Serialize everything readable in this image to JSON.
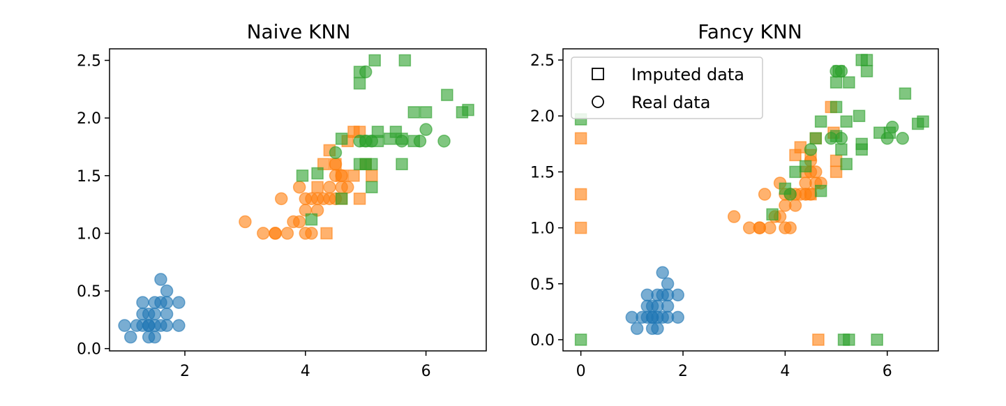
{
  "chart_data": [
    {
      "type": "scatter",
      "title": "Naive KNN",
      "xlabel": "",
      "ylabel": "",
      "xlim": [
        0.75,
        7.0
      ],
      "ylim": [
        -0.02,
        2.6
      ],
      "xticks": [
        2,
        4,
        6
      ],
      "yticks": [
        0.0,
        0.5,
        1.0,
        1.5,
        2.0,
        2.5
      ],
      "xtick_labels": [
        "2",
        "4",
        "6"
      ],
      "ytick_labels": [
        "0.0",
        "0.5",
        "1.0",
        "1.5",
        "2.0",
        "2.5"
      ],
      "grid": false,
      "legend": null,
      "series": [
        {
          "color": "#1f77b4",
          "marker": "circle",
          "points": [
            [
              1.0,
              0.2
            ],
            [
              1.1,
              0.1
            ],
            [
              1.2,
              0.2
            ],
            [
              1.3,
              0.2
            ],
            [
              1.3,
              0.3
            ],
            [
              1.3,
              0.4
            ],
            [
              1.4,
              0.2
            ],
            [
              1.4,
              0.1
            ],
            [
              1.4,
              0.3
            ],
            [
              1.5,
              0.2
            ],
            [
              1.5,
              0.1
            ],
            [
              1.5,
              0.4
            ],
            [
              1.6,
              0.2
            ],
            [
              1.6,
              0.4
            ],
            [
              1.6,
              0.6
            ],
            [
              1.7,
              0.3
            ],
            [
              1.7,
              0.2
            ],
            [
              1.7,
              0.5
            ],
            [
              1.7,
              0.4
            ],
            [
              1.9,
              0.2
            ],
            [
              1.9,
              0.4
            ],
            [
              1.5,
              0.3
            ],
            [
              1.4,
              0.2
            ]
          ]
        },
        {
          "color": "#ff7f0e",
          "marker": "circle",
          "points": [
            [
              3.0,
              1.1
            ],
            [
              3.3,
              1.0
            ],
            [
              3.5,
              1.0
            ],
            [
              3.5,
              1.0
            ],
            [
              3.6,
              1.3
            ],
            [
              3.7,
              1.0
            ],
            [
              3.8,
              1.1
            ],
            [
              3.9,
              1.1
            ],
            [
              3.9,
              1.4
            ],
            [
              4.0,
              1.0
            ],
            [
              4.0,
              1.2
            ],
            [
              4.0,
              1.3
            ],
            [
              4.1,
              1.3
            ],
            [
              4.1,
              1.0
            ],
            [
              4.2,
              1.3
            ],
            [
              4.2,
              1.2
            ],
            [
              4.3,
              1.3
            ],
            [
              4.4,
              1.4
            ],
            [
              4.4,
              1.3
            ],
            [
              4.5,
              1.5
            ],
            [
              4.5,
              1.3
            ],
            [
              4.6,
              1.4
            ],
            [
              4.6,
              1.5
            ],
            [
              4.7,
              1.4
            ],
            [
              4.5,
              1.6
            ]
          ]
        },
        {
          "color": "#ff7f0e",
          "marker": "square",
          "points": [
            [
              4.35,
              1.0
            ],
            [
              4.4,
              1.72
            ],
            [
              4.5,
              1.6
            ],
            [
              4.6,
              1.3
            ],
            [
              4.6,
              1.5
            ],
            [
              4.7,
              1.8
            ],
            [
              4.8,
              1.88
            ],
            [
              4.9,
              1.88
            ],
            [
              4.8,
              1.5
            ],
            [
              4.9,
              1.3
            ],
            [
              5.0,
              1.6
            ],
            [
              5.1,
              1.5
            ],
            [
              4.3,
              1.6
            ],
            [
              4.2,
              1.4
            ]
          ]
        },
        {
          "color": "#2ca02c",
          "marker": "circle",
          "points": [
            [
              4.5,
              1.7
            ],
            [
              5.0,
              2.4
            ],
            [
              5.1,
              1.8
            ],
            [
              5.6,
              1.8
            ],
            [
              5.9,
              1.8
            ],
            [
              6.0,
              1.9
            ],
            [
              6.3,
              1.8
            ],
            [
              5.0,
              1.8
            ],
            [
              4.9,
              1.8
            ]
          ]
        },
        {
          "color": "#2ca02c",
          "marker": "square",
          "points": [
            [
              3.95,
              1.5
            ],
            [
              4.1,
              1.12
            ],
            [
              4.2,
              1.52
            ],
            [
              4.6,
              1.3
            ],
            [
              4.6,
              1.82
            ],
            [
              4.9,
              2.4
            ],
            [
              4.9,
              2.3
            ],
            [
              4.9,
              1.6
            ],
            [
              5.0,
              1.6
            ],
            [
              5.0,
              1.8
            ],
            [
              5.1,
              1.4
            ],
            [
              5.1,
              1.6
            ],
            [
              5.15,
              2.5
            ],
            [
              5.2,
              1.88
            ],
            [
              5.2,
              1.8
            ],
            [
              5.4,
              1.82
            ],
            [
              5.5,
              1.88
            ],
            [
              5.6,
              1.6
            ],
            [
              5.6,
              1.82
            ],
            [
              5.65,
              2.5
            ],
            [
              5.8,
              2.05
            ],
            [
              5.8,
              1.8
            ],
            [
              6.0,
              2.05
            ],
            [
              6.35,
              2.2
            ],
            [
              6.6,
              2.05
            ],
            [
              6.7,
              2.07
            ]
          ]
        }
      ]
    },
    {
      "type": "scatter",
      "title": "Fancy KNN",
      "xlabel": "",
      "ylabel": "",
      "xlim": [
        -0.35,
        7.0
      ],
      "ylim": [
        -0.1,
        2.6
      ],
      "xticks": [
        0,
        2,
        4,
        6
      ],
      "yticks": [
        0.0,
        0.5,
        1.0,
        1.5,
        2.0,
        2.5
      ],
      "xtick_labels": [
        "0",
        "2",
        "4",
        "6"
      ],
      "ytick_labels": [
        "0.0",
        "0.5",
        "1.0",
        "1.5",
        "2.0",
        "2.5"
      ],
      "grid": false,
      "legend": {
        "placement": "upper-left",
        "entries": [
          {
            "label": "Imputed data",
            "marker": "square"
          },
          {
            "label": "Real data",
            "marker": "circle"
          }
        ]
      },
      "series": [
        {
          "color": "#1f77b4",
          "marker": "circle",
          "points": [
            [
              1.0,
              0.2
            ],
            [
              1.1,
              0.1
            ],
            [
              1.2,
              0.2
            ],
            [
              1.3,
              0.2
            ],
            [
              1.3,
              0.3
            ],
            [
              1.3,
              0.4
            ],
            [
              1.4,
              0.2
            ],
            [
              1.4,
              0.1
            ],
            [
              1.4,
              0.3
            ],
            [
              1.5,
              0.2
            ],
            [
              1.5,
              0.1
            ],
            [
              1.5,
              0.4
            ],
            [
              1.6,
              0.2
            ],
            [
              1.6,
              0.4
            ],
            [
              1.6,
              0.6
            ],
            [
              1.7,
              0.3
            ],
            [
              1.7,
              0.2
            ],
            [
              1.7,
              0.5
            ],
            [
              1.7,
              0.4
            ],
            [
              1.9,
              0.2
            ],
            [
              1.9,
              0.4
            ],
            [
              1.5,
              0.3
            ],
            [
              1.4,
              0.2
            ]
          ]
        },
        {
          "color": "#ff7f0e",
          "marker": "circle",
          "points": [
            [
              3.0,
              1.1
            ],
            [
              3.3,
              1.0
            ],
            [
              3.5,
              1.0
            ],
            [
              3.5,
              1.0
            ],
            [
              3.6,
              1.3
            ],
            [
              3.7,
              1.0
            ],
            [
              3.8,
              1.1
            ],
            [
              3.9,
              1.1
            ],
            [
              3.9,
              1.4
            ],
            [
              4.0,
              1.0
            ],
            [
              4.0,
              1.2
            ],
            [
              4.0,
              1.3
            ],
            [
              4.1,
              1.3
            ],
            [
              4.1,
              1.0
            ],
            [
              4.2,
              1.3
            ],
            [
              4.2,
              1.2
            ],
            [
              4.3,
              1.3
            ],
            [
              4.4,
              1.4
            ],
            [
              4.4,
              1.3
            ],
            [
              4.5,
              1.5
            ],
            [
              4.5,
              1.3
            ],
            [
              4.6,
              1.4
            ],
            [
              4.6,
              1.5
            ],
            [
              4.7,
              1.4
            ],
            [
              4.5,
              1.6
            ]
          ]
        },
        {
          "color": "#ff7f0e",
          "marker": "square",
          "points": [
            [
              0.0,
              1.8
            ],
            [
              0.0,
              1.3
            ],
            [
              0.0,
              1.0
            ],
            [
              4.65,
              0.0
            ],
            [
              4.2,
              1.65
            ],
            [
              4.3,
              1.72
            ],
            [
              4.4,
              1.5
            ],
            [
              4.5,
              1.3
            ],
            [
              4.5,
              1.65
            ],
            [
              4.6,
              1.8
            ],
            [
              4.9,
              2.08
            ],
            [
              4.95,
              1.85
            ],
            [
              5.0,
              1.5
            ],
            [
              5.0,
              1.6
            ]
          ]
        },
        {
          "color": "#2ca02c",
          "marker": "circle",
          "points": [
            [
              4.5,
              1.7
            ],
            [
              5.0,
              2.4
            ],
            [
              5.1,
              2.4
            ],
            [
              6.0,
              1.8
            ],
            [
              6.1,
              1.9
            ],
            [
              6.3,
              1.8
            ],
            [
              4.9,
              1.8
            ],
            [
              5.1,
              1.8
            ],
            [
              4.1,
              1.3
            ]
          ]
        },
        {
          "color": "#2ca02c",
          "marker": "square",
          "points": [
            [
              0.0,
              1.97
            ],
            [
              0.0,
              0.0
            ],
            [
              3.75,
              1.12
            ],
            [
              4.0,
              1.35
            ],
            [
              4.2,
              1.5
            ],
            [
              4.4,
              1.55
            ],
            [
              4.6,
              1.8
            ],
            [
              4.7,
              1.95
            ],
            [
              4.7,
              1.33
            ],
            [
              5.0,
              2.08
            ],
            [
              5.0,
              2.3
            ],
            [
              5.0,
              1.82
            ],
            [
              5.05,
              2.4
            ],
            [
              5.1,
              1.7
            ],
            [
              5.15,
              0.0
            ],
            [
              5.2,
              1.57
            ],
            [
              5.2,
              1.95
            ],
            [
              5.25,
              0.0
            ],
            [
              5.25,
              2.3
            ],
            [
              5.45,
              2.0
            ],
            [
              5.5,
              2.5
            ],
            [
              5.5,
              1.75
            ],
            [
              5.6,
              2.5
            ],
            [
              5.6,
              2.4
            ],
            [
              5.8,
              0.0
            ],
            [
              5.85,
              1.85
            ],
            [
              6.05,
              1.85
            ],
            [
              6.35,
              2.2
            ],
            [
              6.6,
              1.93
            ],
            [
              6.7,
              1.95
            ],
            [
              5.5,
              1.7
            ]
          ]
        }
      ]
    }
  ]
}
